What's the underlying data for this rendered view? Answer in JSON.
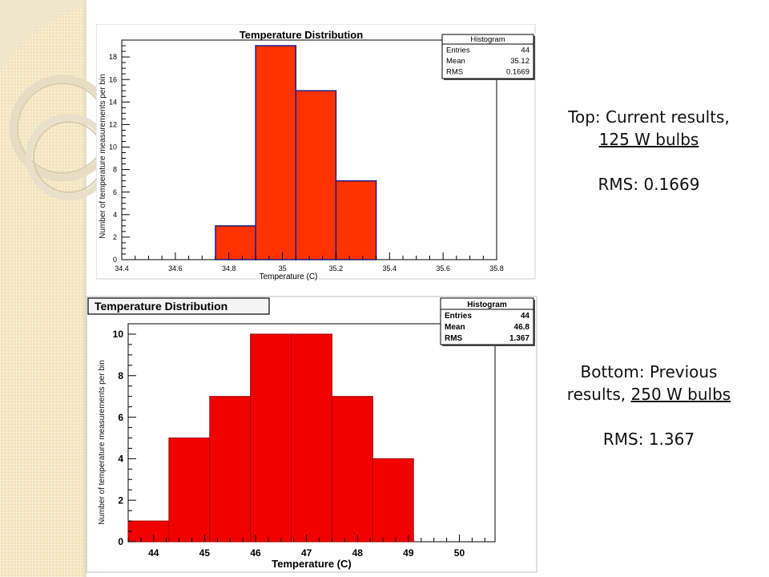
{
  "chart_data": [
    {
      "type": "bar",
      "title": "Temperature Distribution",
      "xlabel": "Temperature (C)",
      "ylabel": "Number of temperature measurements per bin",
      "xlim": [
        34.4,
        35.8
      ],
      "ylim": [
        0,
        19.5
      ],
      "x_ticks": [
        "34.4",
        "34.6",
        "34.8",
        "35",
        "35.2",
        "35.4",
        "35.6",
        "35.8"
      ],
      "y_ticks": [
        "0",
        "2",
        "4",
        "6",
        "8",
        "10",
        "12",
        "14",
        "16",
        "18"
      ],
      "bins": [
        {
          "x0": 34.75,
          "x1": 34.9,
          "value": 3
        },
        {
          "x0": 34.9,
          "x1": 35.05,
          "value": 19
        },
        {
          "x0": 35.05,
          "x1": 35.2,
          "value": 15
        },
        {
          "x0": 35.2,
          "x1": 35.35,
          "value": 7
        }
      ],
      "stats": {
        "title": "Histogram",
        "rows": [
          [
            "Entries",
            "44"
          ],
          [
            "Mean",
            "35.12"
          ],
          [
            "RMS",
            "0.1669"
          ]
        ]
      },
      "fill_color": "#ff3300",
      "edge_color": "#1c1c8a"
    },
    {
      "type": "bar",
      "title": "Temperature Distribution",
      "xlabel": "Temperature (C)",
      "ylabel": "Number of temperature measurements per bin",
      "xlim": [
        43.5,
        50.7
      ],
      "ylim": [
        0,
        10.5
      ],
      "x_ticks": [
        "44",
        "45",
        "46",
        "47",
        "48",
        "49",
        "50"
      ],
      "y_ticks": [
        "0",
        "2",
        "4",
        "6",
        "8",
        "10"
      ],
      "bins": [
        {
          "x0": 43.5,
          "x1": 44.3,
          "value": 1
        },
        {
          "x0": 44.3,
          "x1": 45.1,
          "value": 5
        },
        {
          "x0": 45.1,
          "x1": 45.9,
          "value": 7
        },
        {
          "x0": 45.9,
          "x1": 46.7,
          "value": 10
        },
        {
          "x0": 46.7,
          "x1": 47.5,
          "value": 10
        },
        {
          "x0": 47.5,
          "x1": 48.3,
          "value": 7
        },
        {
          "x0": 48.3,
          "x1": 49.1,
          "value": 4
        }
      ],
      "stats": {
        "title": "Histogram",
        "rows": [
          [
            "Entries",
            "44"
          ],
          [
            "Mean",
            "46.8"
          ],
          [
            "RMS",
            "1.367"
          ]
        ]
      },
      "fill_color": "#f20000",
      "edge_color": "#a00000"
    }
  ],
  "captions": {
    "top": {
      "line1": "Top:  Current results,",
      "line2": "125 W bulbs",
      "rms": "RMS: 0.1669"
    },
    "bottom": {
      "line1": "Bottom:  Previous",
      "line2a": "results,  ",
      "line2b": "250 W  bulbs",
      "rms": "RMS: 1.367"
    }
  }
}
